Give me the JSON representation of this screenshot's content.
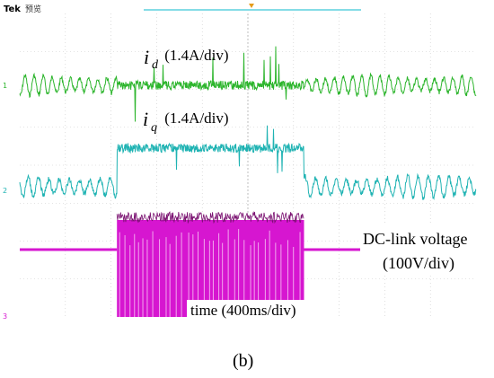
{
  "header": {
    "brand": "Tek",
    "mode": "预览",
    "brand_color": "#1f3a8a"
  },
  "chart_data": {
    "type": "line",
    "title": "",
    "xlabel": "time (400ms/div)",
    "x_unit": "ms",
    "x_per_div": 400,
    "grid": true,
    "grid_divisions": {
      "x": 10,
      "y": 8
    },
    "legend": "none",
    "series": [
      {
        "name": "i_d (1.4A/div)",
        "label_main": "i",
        "label_sub": "d",
        "label_scale": " (1.4A/div)",
        "channel_marker": "1",
        "color": "#2cb52c",
        "shape": "oscillation-then-flat-then-oscillation",
        "events_div": [
          2.13,
          6.23
        ]
      },
      {
        "name": "i_q (1.4A/div)",
        "label_main": "i",
        "label_sub": "q",
        "label_scale": " (1.4A/div)",
        "channel_marker": "2",
        "color": "#1fb3b3",
        "shape": "oscillation-then-step-up-then-oscillation",
        "events_div": [
          2.13,
          6.23
        ]
      },
      {
        "name": "DC-link voltage (100V/div)",
        "label_line1": "DC-link voltage",
        "label_line2": "(100V/div)",
        "channel_marker": "3",
        "color": "#d616d0",
        "shape": "flat-then-high-band-then-flat",
        "events_div": [
          2.13,
          6.23
        ]
      }
    ]
  },
  "caption": {
    "text": "(b)"
  }
}
